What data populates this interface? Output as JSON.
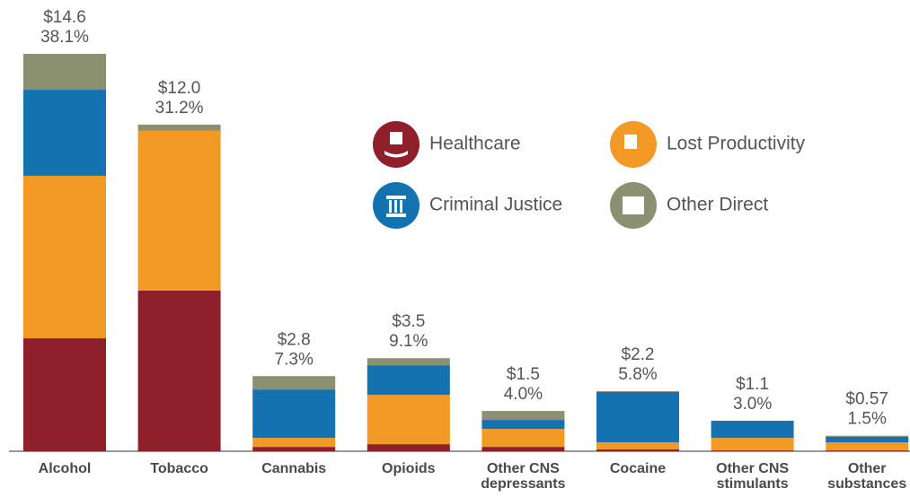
{
  "chart_data": {
    "type": "stacked_bar",
    "categories": [
      "Alcohol",
      "Tobacco",
      "Cannabis",
      "Opioids",
      "Other CNS\ndepressants",
      "Cocaine",
      "Other CNS\nstimulants",
      "Other\nsubstances"
    ],
    "series": [
      {
        "name": "Healthcare",
        "color": "#8e1f2b",
        "values": [
          4.15,
          5.9,
          0.16,
          0.26,
          0.16,
          0.07,
          0.03,
          0.03
        ]
      },
      {
        "name": "Lost Productivity",
        "color": "#f39a26",
        "values": [
          5.97,
          5.87,
          0.33,
          1.81,
          0.66,
          0.26,
          0.46,
          0.3
        ]
      },
      {
        "name": "Criminal Justice",
        "color": "#1572b0",
        "values": [
          3.16,
          0,
          1.78,
          1.09,
          0.33,
          1.85,
          0.63,
          0.2
        ]
      },
      {
        "name": "Other Direct",
        "color": "#8a9070",
        "values": [
          1.32,
          0.23,
          0.49,
          0.26,
          0.33,
          0.03,
          0,
          0.04
        ]
      }
    ],
    "value_labels": [
      "$14.6",
      "$12.0",
      "$2.8",
      "$3.5",
      "$1.5",
      "$2.2",
      "$1.1",
      "$0.57"
    ],
    "share_labels": [
      "38.1%",
      "31.2%",
      "7.3%",
      "9.1%",
      "4.0%",
      "5.8%",
      "3.0%",
      "1.5%"
    ]
  }
}
